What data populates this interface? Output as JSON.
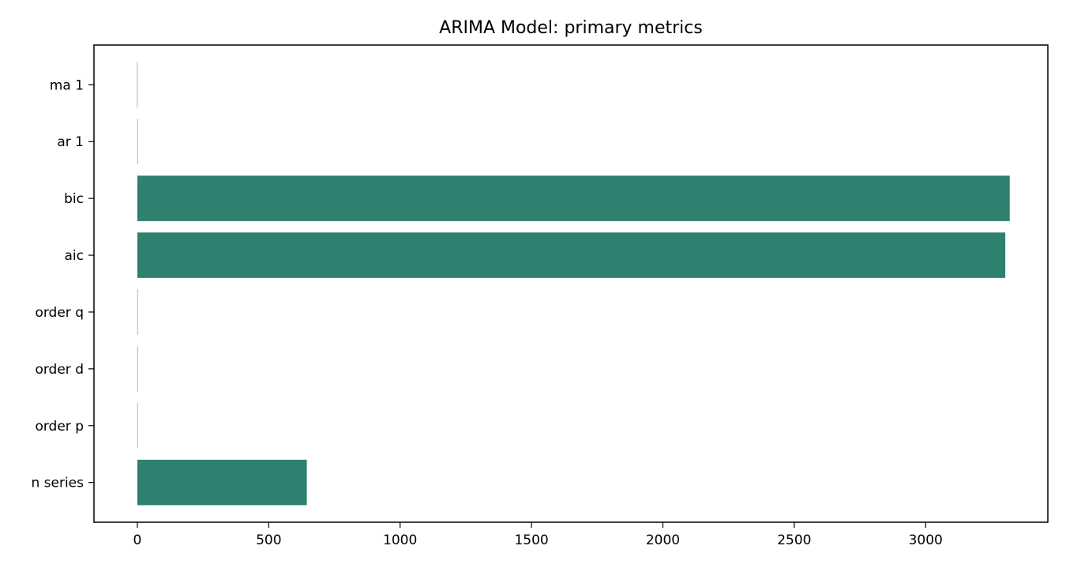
{
  "chart_data": {
    "type": "bar",
    "orientation": "horizontal",
    "title": "ARIMA Model: primary metrics",
    "xlabel": "",
    "ylabel": "",
    "categories": [
      "n series",
      "order p",
      "order d",
      "order q",
      "aic",
      "bic",
      "ar 1",
      "ma 1"
    ],
    "values": [
      645,
      1,
      1,
      1,
      3303,
      3320,
      0.3,
      -0.6
    ],
    "xlim": [
      -165,
      3465
    ],
    "xticks": [
      0,
      500,
      1000,
      1500,
      2000,
      2500,
      3000
    ],
    "grid": false,
    "legend": "none",
    "bar_color": "#2e8070"
  }
}
